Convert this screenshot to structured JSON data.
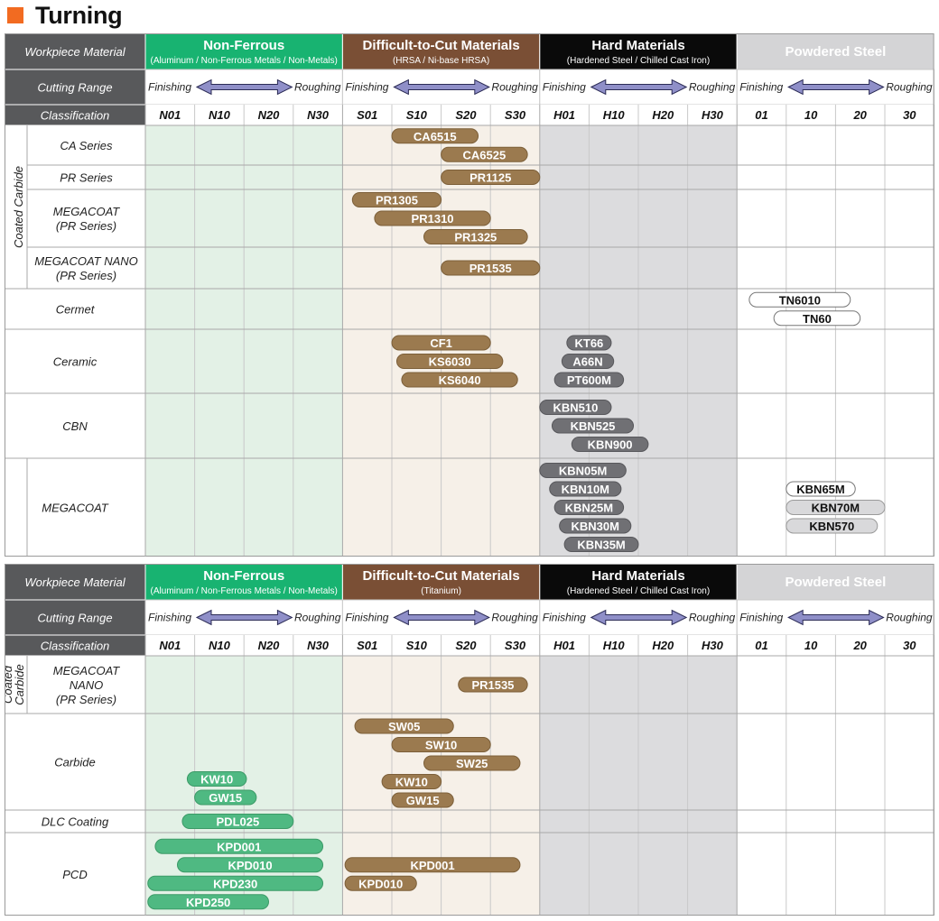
{
  "title": "Turning",
  "colors": {
    "accent": "#f26b21",
    "header_gray": "#58595b",
    "nonferrous_head": "#18b371",
    "nonferrous_bg": "#e3f1e6",
    "difficult_head": "#7a4f35",
    "difficult_bg": "#f6f0e8",
    "hard_head": "#0a0a0a",
    "hard_bg": "#dcdcde",
    "powdered_head": "#d4d4d6",
    "bar_green": "#4fb982",
    "bar_brown": "#9b7a4f",
    "bar_gray": "#707074",
    "bar_white": "#ffffff",
    "bar_lightgray": "#d9d9db"
  },
  "sections": [
    {
      "header_labels": {
        "workpiece": "Workpiece Material",
        "cutting_range": "Cutting Range",
        "classification": "Classification"
      },
      "groups": [
        {
          "key": "nonferrous",
          "title": "Non-Ferrous",
          "subtitle": "(Aluminum / Non-Ferrous Metals / Non-Metals)"
        },
        {
          "key": "difficult",
          "title": "Difficult-to-Cut Materials",
          "subtitle": "(HRSA / Ni-base HRSA)"
        },
        {
          "key": "hard",
          "title": "Hard Materials",
          "subtitle": "(Hardened Steel / Chilled Cast Iron)"
        },
        {
          "key": "powdered",
          "title": "Powdered Steel",
          "subtitle": ""
        }
      ],
      "range_labels": {
        "finishing": "Finishing",
        "roughing": "Roughing"
      },
      "codes": [
        "N01",
        "N10",
        "N20",
        "N30",
        "S01",
        "S10",
        "S20",
        "S30",
        "H01",
        "H10",
        "H20",
        "H30",
        "01",
        "10",
        "20",
        "30"
      ],
      "categories": [
        {
          "label": "Coated Carbide",
          "rows": [
            "CA Series",
            "PR Series",
            "MEGACOAT\n(PR Series)",
            "MEGACOAT NANO\n(PR Series)"
          ]
        },
        {
          "label": "",
          "rows": [
            "Cermet"
          ]
        },
        {
          "label": "",
          "rows": [
            "Ceramic"
          ]
        },
        {
          "label": "",
          "rows": [
            "CBN",
            "MEGACOAT"
          ]
        }
      ],
      "grades": [
        {
          "name": "CA6515",
          "row": 0,
          "start": 5.0,
          "end": 6.75,
          "color": "brown"
        },
        {
          "name": "CA6525",
          "row": 0,
          "start": 6.0,
          "end": 7.75,
          "color": "brown"
        },
        {
          "name": "PR1125",
          "row": 1,
          "start": 6.0,
          "end": 8.0,
          "color": "brown"
        },
        {
          "name": "PR1305",
          "row": 2,
          "start": 4.2,
          "end": 6.0,
          "color": "brown"
        },
        {
          "name": "PR1310",
          "row": 2,
          "start": 4.65,
          "end": 7.0,
          "color": "brown"
        },
        {
          "name": "PR1325",
          "row": 2,
          "start": 5.65,
          "end": 7.75,
          "color": "brown"
        },
        {
          "name": "PR1535",
          "row": 3,
          "start": 6.0,
          "end": 8.0,
          "color": "brown"
        },
        {
          "name": "TN6010",
          "row": 4,
          "start": 12.25,
          "end": 14.3,
          "color": "white"
        },
        {
          "name": "TN60",
          "row": 4,
          "start": 12.75,
          "end": 14.5,
          "color": "white"
        },
        {
          "name": "CF1",
          "row": 5,
          "start": 5.0,
          "end": 7.0,
          "color": "brown"
        },
        {
          "name": "KS6030",
          "row": 5,
          "start": 5.1,
          "end": 7.25,
          "color": "brown"
        },
        {
          "name": "KS6040",
          "row": 5,
          "start": 5.2,
          "end": 7.55,
          "color": "brown"
        },
        {
          "name": "KT66",
          "row": 5,
          "start": 8.55,
          "end": 9.45,
          "color": "gray"
        },
        {
          "name": "A66N",
          "row": 5,
          "start": 8.45,
          "end": 9.5,
          "color": "gray"
        },
        {
          "name": "PT600M",
          "row": 5,
          "start": 8.3,
          "end": 9.7,
          "color": "gray"
        },
        {
          "name": "KBN510",
          "row": 6,
          "start": 8.0,
          "end": 9.45,
          "color": "gray"
        },
        {
          "name": "KBN525",
          "row": 6,
          "start": 8.25,
          "end": 9.9,
          "color": "gray"
        },
        {
          "name": "KBN900",
          "row": 6,
          "start": 8.65,
          "end": 10.2,
          "color": "gray"
        },
        {
          "name": "KBN05M",
          "row": 7,
          "start": 8.0,
          "end": 9.75,
          "color": "gray"
        },
        {
          "name": "KBN10M",
          "row": 7,
          "start": 8.2,
          "end": 9.65,
          "color": "gray"
        },
        {
          "name": "KBN25M",
          "row": 7,
          "start": 8.3,
          "end": 9.7,
          "color": "gray"
        },
        {
          "name": "KBN30M",
          "row": 7,
          "start": 8.4,
          "end": 9.85,
          "color": "gray"
        },
        {
          "name": "KBN35M",
          "row": 7,
          "start": 8.5,
          "end": 10.0,
          "color": "gray"
        },
        {
          "name": "KBN65M",
          "row": 7,
          "start": 13.0,
          "end": 14.4,
          "color": "white"
        },
        {
          "name": "KBN70M",
          "row": 7,
          "start": 13.0,
          "end": 15.0,
          "color": "lightgray"
        },
        {
          "name": "KBN570",
          "row": 7,
          "start": 13.0,
          "end": 14.85,
          "color": "lightgray"
        }
      ]
    },
    {
      "header_labels": {
        "workpiece": "Workpiece Material",
        "cutting_range": "Cutting Range",
        "classification": "Classification"
      },
      "groups": [
        {
          "key": "nonferrous",
          "title": "Non-Ferrous",
          "subtitle": "(Aluminum / Non-Ferrous Metals / Non-Metals)"
        },
        {
          "key": "difficult",
          "title": "Difficult-to-Cut Materials",
          "subtitle": "(Titanium)"
        },
        {
          "key": "hard",
          "title": "Hard Materials",
          "subtitle": "(Hardened Steel / Chilled Cast Iron)"
        },
        {
          "key": "powdered",
          "title": "Powdered Steel",
          "subtitle": ""
        }
      ],
      "range_labels": {
        "finishing": "Finishing",
        "roughing": "Roughing"
      },
      "codes": [
        "N01",
        "N10",
        "N20",
        "N30",
        "S01",
        "S10",
        "S20",
        "S30",
        "H01",
        "H10",
        "H20",
        "H30",
        "01",
        "10",
        "20",
        "30"
      ],
      "categories": [
        {
          "label": "Coated\nCarbide",
          "rows": [
            "MEGACOAT\nNANO\n(PR Series)"
          ]
        },
        {
          "label": "",
          "rows": [
            "Carbide"
          ]
        },
        {
          "label": "",
          "rows": [
            "DLC Coating"
          ]
        },
        {
          "label": "",
          "rows": [
            "PCD"
          ]
        }
      ],
      "grades": [
        {
          "name": "PR1535",
          "row": 0,
          "start": 6.35,
          "end": 7.75,
          "color": "brown"
        },
        {
          "name": "SW05",
          "row": 1,
          "start": 4.25,
          "end": 6.25,
          "color": "brown"
        },
        {
          "name": "SW10",
          "row": 1,
          "start": 5.0,
          "end": 7.0,
          "color": "brown"
        },
        {
          "name": "SW25",
          "row": 1,
          "start": 5.65,
          "end": 7.6,
          "color": "brown"
        },
        {
          "name": "KW10",
          "row": 1,
          "start": 0.85,
          "end": 2.05,
          "color": "green"
        },
        {
          "name": "GW15",
          "row": 1,
          "start": 1.0,
          "end": 2.25,
          "color": "green"
        },
        {
          "name": "KW10",
          "row": 1,
          "start": 4.8,
          "end": 6.0,
          "color": "brown"
        },
        {
          "name": "GW15",
          "row": 1,
          "start": 5.0,
          "end": 6.25,
          "color": "brown"
        },
        {
          "name": "PDL025",
          "row": 2,
          "start": 0.75,
          "end": 3.0,
          "color": "green"
        },
        {
          "name": "KPD001",
          "row": 3,
          "start": 0.2,
          "end": 3.6,
          "color": "green"
        },
        {
          "name": "KPD010",
          "row": 3,
          "start": 0.65,
          "end": 3.6,
          "color": "green"
        },
        {
          "name": "KPD230",
          "row": 3,
          "start": 0.05,
          "end": 3.6,
          "color": "green"
        },
        {
          "name": "KPD250",
          "row": 3,
          "start": 0.05,
          "end": 2.5,
          "color": "green"
        },
        {
          "name": "KPD001",
          "row": 3,
          "start": 4.05,
          "end": 7.6,
          "color": "brown"
        },
        {
          "name": "KPD010",
          "row": 3,
          "start": 4.05,
          "end": 5.5,
          "color": "brown"
        }
      ]
    }
  ]
}
